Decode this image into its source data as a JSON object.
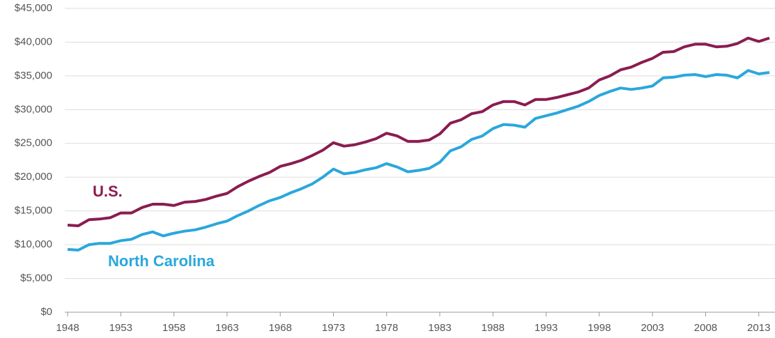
{
  "chart_data": {
    "type": "line",
    "x": [
      1948,
      1949,
      1950,
      1951,
      1952,
      1953,
      1954,
      1955,
      1956,
      1957,
      1958,
      1959,
      1960,
      1961,
      1962,
      1963,
      1964,
      1965,
      1966,
      1967,
      1968,
      1969,
      1970,
      1971,
      1972,
      1973,
      1974,
      1975,
      1976,
      1977,
      1978,
      1979,
      1980,
      1981,
      1982,
      1983,
      1984,
      1985,
      1986,
      1987,
      1988,
      1989,
      1990,
      1991,
      1992,
      1993,
      1994,
      1995,
      1996,
      1997,
      1998,
      1999,
      2000,
      2001,
      2002,
      2003,
      2004,
      2005,
      2006,
      2007,
      2008,
      2009,
      2010,
      2011,
      2012,
      2013,
      2014
    ],
    "series": [
      {
        "name": "U.S.",
        "color": "#8a1c50",
        "values": [
          12900,
          12800,
          13700,
          13800,
          14000,
          14700,
          14700,
          15500,
          16000,
          16000,
          15800,
          16300,
          16400,
          16700,
          17200,
          17600,
          18600,
          19400,
          20100,
          20700,
          21600,
          22000,
          22500,
          23200,
          24000,
          25100,
          24600,
          24800,
          25200,
          25700,
          26500,
          26100,
          25300,
          25300,
          25500,
          26400,
          28000,
          28500,
          29400,
          29700,
          30700,
          31200,
          31200,
          30700,
          31500,
          31500,
          31800,
          32200,
          32600,
          33200,
          34400,
          35000,
          35900,
          36300,
          37000,
          37600,
          38500,
          38600,
          39300,
          39700,
          39700,
          39300,
          39400,
          39800,
          40600,
          40100,
          40600
        ]
      },
      {
        "name": "North Carolina",
        "color": "#2aa7dc",
        "values": [
          9300,
          9200,
          10000,
          10200,
          10200,
          10600,
          10800,
          11500,
          11900,
          11300,
          11700,
          12000,
          12200,
          12600,
          13100,
          13500,
          14300,
          15000,
          15800,
          16500,
          17000,
          17700,
          18300,
          19000,
          20000,
          21200,
          20500,
          20700,
          21100,
          21400,
          22000,
          21500,
          20800,
          21000,
          21300,
          22200,
          23900,
          24500,
          25600,
          26100,
          27200,
          27800,
          27700,
          27400,
          28700,
          29100,
          29500,
          30000,
          30500,
          31200,
          32100,
          32700,
          33200,
          33000,
          33200,
          33500,
          34700,
          34800,
          35100,
          35200,
          34900,
          35200,
          35100,
          34700,
          35800,
          35300,
          35500
        ]
      }
    ],
    "xlim": [
      1948,
      2014
    ],
    "xticks": [
      1948,
      1953,
      1958,
      1963,
      1968,
      1973,
      1978,
      1983,
      1988,
      1993,
      1998,
      2003,
      2008,
      2013
    ],
    "ylim": [
      0,
      45000
    ],
    "yticks": [
      {
        "value": 0,
        "label": "$0"
      },
      {
        "value": 5000,
        "label": "$5,000"
      },
      {
        "value": 10000,
        "label": "$10,000"
      },
      {
        "value": 15000,
        "label": "$15,000"
      },
      {
        "value": 20000,
        "label": "$20,000"
      },
      {
        "value": 25000,
        "label": "$25,000"
      },
      {
        "value": 30000,
        "label": "$30,000"
      },
      {
        "value": 35000,
        "label": "$35,000"
      },
      {
        "value": 40000,
        "label": "$40,000"
      },
      {
        "value": 45000,
        "label": "$45,000"
      }
    ],
    "grid": true
  }
}
